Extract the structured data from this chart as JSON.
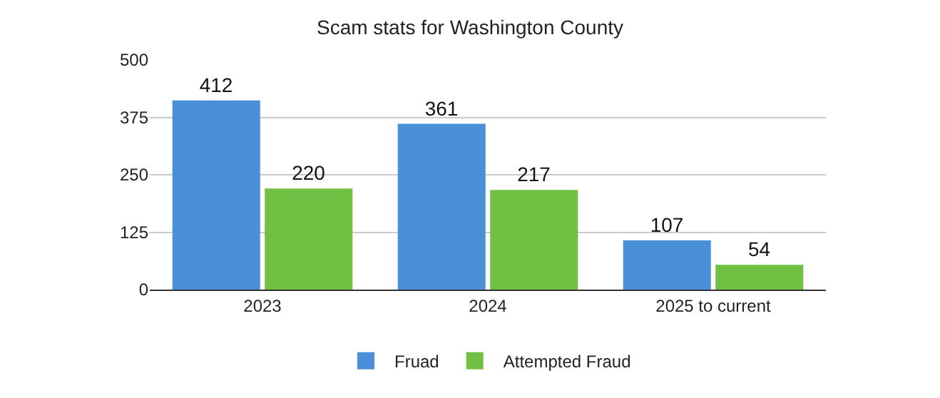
{
  "chart_data": {
    "type": "bar",
    "title": "Scam stats for Washington County",
    "categories": [
      "2023",
      "2024",
      "2025 to current"
    ],
    "series": [
      {
        "name": "Fruad",
        "color": "#4a90d9",
        "values": [
          412,
          361,
          107
        ]
      },
      {
        "name": "Attempted Fraud",
        "color": "#72c043",
        "values": [
          220,
          217,
          54
        ]
      }
    ],
    "ylim": [
      0,
      500
    ],
    "yticks": [
      0,
      125,
      250,
      375,
      500
    ],
    "grid": "y",
    "legend": "bottom",
    "data_labels": true
  }
}
